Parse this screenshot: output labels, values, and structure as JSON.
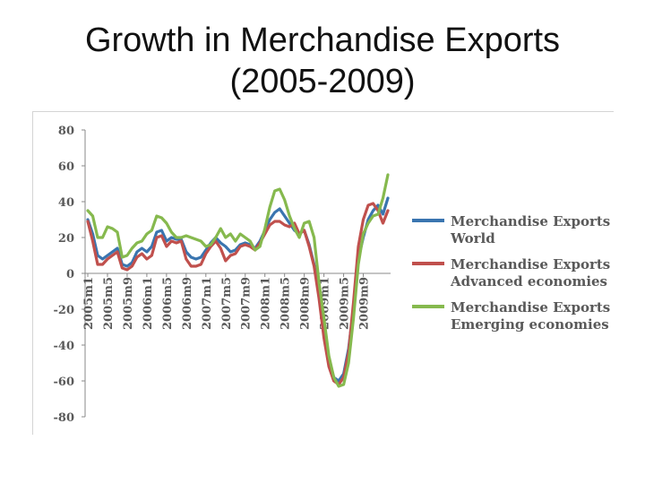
{
  "slide": {
    "title_line1": "Growth in Merchandise Exports",
    "title_line2": "(2005-2009)"
  },
  "chart_data": {
    "type": "line",
    "ylim": [
      -80,
      80
    ],
    "yticks": [
      80,
      60,
      40,
      20,
      0,
      -20,
      -40,
      -60,
      -80
    ],
    "x_tick_labels": [
      "2005m1",
      "2005m5",
      "2005m9",
      "2006m1",
      "2006m5",
      "2006m9",
      "2007m1",
      "2007m5",
      "2007m9",
      "2008m1",
      "2008m5",
      "2008m9",
      "2009m1",
      "2009m5",
      "2009m9"
    ],
    "grid": false,
    "legend_position": "right",
    "series": [
      {
        "name": "Merchandise Exports World",
        "name_line1": "Merchandise Exports",
        "name_line2": "World",
        "color": "#3a75b0",
        "values": [
          30,
          22,
          10,
          8,
          10,
          12,
          14,
          5,
          4,
          6,
          12,
          14,
          12,
          15,
          23,
          24,
          18,
          20,
          19,
          19,
          12,
          9,
          8,
          9,
          13,
          17,
          20,
          17,
          15,
          12,
          13,
          16,
          17,
          16,
          14,
          18,
          24,
          30,
          34,
          36,
          32,
          28,
          24,
          22,
          24,
          16,
          5,
          -10,
          -30,
          -48,
          -58,
          -60,
          -56,
          -42,
          -20,
          8,
          20,
          30,
          35,
          38,
          33,
          42
        ]
      },
      {
        "name": "Merchandise Exports Advanced economies",
        "name_line1": "Merchandise Exports",
        "name_line2": "Advanced economies",
        "color": "#c0504d",
        "values": [
          29,
          18,
          5,
          5,
          8,
          10,
          12,
          3,
          2,
          4,
          9,
          11,
          8,
          10,
          20,
          21,
          15,
          18,
          17,
          18,
          8,
          4,
          4,
          5,
          11,
          15,
          18,
          14,
          7,
          10,
          11,
          15,
          16,
          15,
          13,
          17,
          22,
          27,
          29,
          29,
          27,
          26,
          28,
          22,
          24,
          15,
          4,
          -14,
          -36,
          -52,
          -60,
          -62,
          -58,
          -44,
          -16,
          15,
          30,
          38,
          39,
          35,
          28,
          35
        ]
      },
      {
        "name": "Merchandise Exports Emerging economies",
        "name_line1": "Merchandise Exports",
        "name_line2": "Emerging economies",
        "color": "#86b94e",
        "values": [
          35,
          32,
          20,
          20,
          26,
          25,
          23,
          9,
          10,
          14,
          17,
          18,
          22,
          24,
          32,
          31,
          28,
          23,
          20,
          20,
          21,
          20,
          19,
          18,
          15,
          16,
          20,
          25,
          20,
          22,
          18,
          22,
          20,
          18,
          13,
          15,
          25,
          37,
          46,
          47,
          41,
          32,
          25,
          20,
          28,
          29,
          20,
          -5,
          -25,
          -46,
          -58,
          -63,
          -62,
          -50,
          -25,
          5,
          22,
          28,
          32,
          33,
          42,
          55
        ]
      }
    ]
  }
}
